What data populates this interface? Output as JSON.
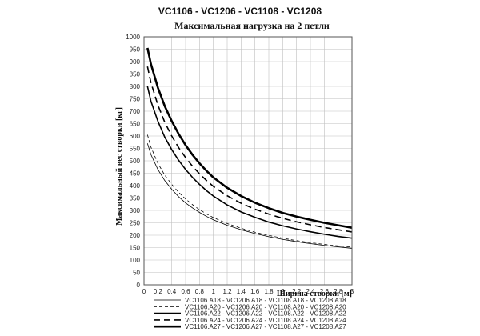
{
  "chart_data": {
    "type": "line",
    "title": "VC1106 - VC1206 - VC1108 - VC1208",
    "subtitle": "Максимальная нагрузка на 2 петли",
    "xlabel": "Ширина створки [м]",
    "ylabel": "Максимальный вес створки [кг]",
    "xlim": [
      0,
      3
    ],
    "ylim": [
      0,
      1000
    ],
    "x_ticks": [
      "0",
      "0,2",
      "0,4",
      "0,6",
      "0,8",
      "1",
      "1,2",
      "1,4",
      "1,6",
      "1,8",
      "2",
      "2,2",
      "2,4",
      "2,6",
      "2,8",
      "3"
    ],
    "y_ticks": [
      "0",
      "50",
      "100",
      "150",
      "200",
      "250",
      "300",
      "350",
      "400",
      "450",
      "500",
      "550",
      "600",
      "650",
      "700",
      "750",
      "800",
      "850",
      "900",
      "950",
      "1000"
    ],
    "grid": true,
    "legend_position": "bottom",
    "x": [
      0.05,
      0.1,
      0.2,
      0.3,
      0.4,
      0.5,
      0.6,
      0.7,
      0.8,
      0.9,
      1.0,
      1.2,
      1.4,
      1.6,
      1.8,
      2.0,
      2.2,
      2.4,
      2.6,
      2.8,
      3.0
    ],
    "series": [
      {
        "name": "VC1106.A18 - VC1206.A18 - VC1108.A18 - VC1208.A18",
        "style": "thin-solid",
        "values": [
          570,
          525,
          465,
          420,
          385,
          355,
          330,
          310,
          292,
          276,
          262,
          240,
          222,
          207,
          194,
          183,
          174,
          166,
          159,
          153,
          147
        ]
      },
      {
        "name": "VC1106.A20 - VC1206.A20 - VC1108.A20 - VC1208.A20",
        "style": "thin-dashed",
        "values": [
          605,
          555,
          490,
          442,
          405,
          373,
          346,
          323,
          303,
          286,
          271,
          247,
          228,
          212,
          199,
          188,
          178,
          170,
          163,
          157,
          152
        ]
      },
      {
        "name": "VC1106.A22 - VC1206.A22 - VC1108.A22 - VC1208.A22",
        "style": "medium-solid",
        "values": [
          800,
          740,
          660,
          595,
          545,
          502,
          465,
          433,
          405,
          380,
          358,
          322,
          294,
          272,
          253,
          238,
          225,
          214,
          204,
          195,
          188
        ]
      },
      {
        "name": "VC1106.A24 - VC1206.A24 - VC1108.A24 - VC1208.A24",
        "style": "medium-dashed",
        "values": [
          880,
          815,
          725,
          655,
          600,
          553,
          513,
          478,
          448,
          421,
          397,
          359,
          329,
          305,
          285,
          268,
          254,
          242,
          231,
          222,
          213
        ]
      },
      {
        "name": "VC1106.A27 - VC1206.A27 - VC1108.A27 - VC1208.A27",
        "style": "thick-solid",
        "values": [
          955,
          890,
          795,
          720,
          660,
          608,
          563,
          524,
          490,
          460,
          433,
          391,
          358,
          331,
          309,
          290,
          275,
          262,
          250,
          240,
          230
        ]
      }
    ]
  }
}
